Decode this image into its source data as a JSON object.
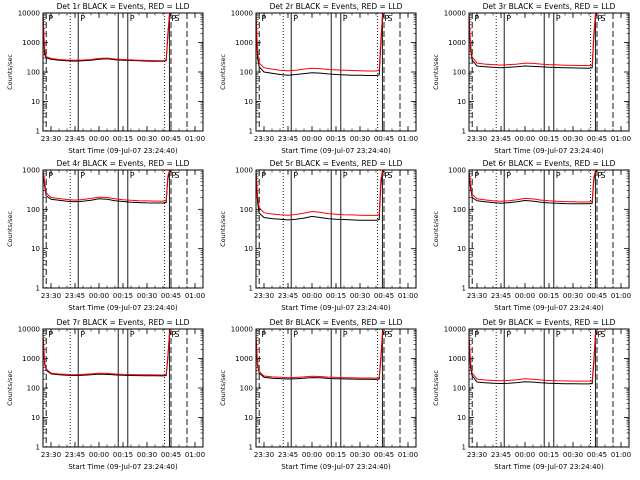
{
  "chart_data": [
    {
      "type": "line",
      "title": "Det 1r BLACK = Events, RED = LLD",
      "xlabel": "Start Time (09-Jul-07 23:24:40)",
      "ylabel": "Counts/sec",
      "ylog": true,
      "ylim": [
        1,
        10000
      ],
      "yticks": [
        "1",
        "10",
        "100",
        "1000",
        "10000"
      ],
      "xticks": [
        "23:30",
        "23:45",
        "00:00",
        "00:15",
        "00:30",
        "00:45",
        "01:00"
      ],
      "x": [
        "23:25",
        "23:26",
        "23:27",
        "23:30",
        "23:35",
        "23:40",
        "23:45",
        "23:50",
        "23:55",
        "00:00",
        "00:05",
        "00:10",
        "00:15",
        "00:20",
        "00:25",
        "00:30",
        "00:35",
        "00:40",
        "00:42",
        "00:43",
        "00:44",
        "00:45"
      ],
      "series": [
        {
          "name": "Events",
          "color": "#000000",
          "values": [
            8000,
            400,
            300,
            270,
            250,
            240,
            235,
            240,
            250,
            270,
            280,
            260,
            250,
            245,
            240,
            235,
            232,
            230,
            240,
            1500,
            8000,
            9000
          ]
        },
        {
          "name": "LLD",
          "color": "#ff0000",
          "values": [
            9000,
            600,
            330,
            290,
            265,
            255,
            250,
            255,
            265,
            290,
            295,
            275,
            265,
            258,
            252,
            247,
            244,
            242,
            255,
            2000,
            9000,
            9500
          ]
        }
      ],
      "vlines_solid": [
        "23:47",
        "00:12",
        "00:18",
        "00:44"
      ],
      "vlines_dotted": [
        "23:42",
        "00:41"
      ],
      "vlines_dashed": [
        "23:27",
        "00:45",
        "00:55"
      ],
      "markers": [
        "P",
        "P",
        "P",
        "P",
        "S"
      ]
    },
    {
      "type": "line",
      "title": "Det 2r BLACK = Events, RED = LLD",
      "xlabel": "Start Time (09-Jul-07 23:24:40)",
      "ylabel": "Counts/sec",
      "ylog": true,
      "ylim": [
        1,
        10000
      ],
      "yticks": [
        "1",
        "10",
        "100",
        "1000",
        "10000"
      ],
      "xticks": [
        "23:30",
        "23:45",
        "00:00",
        "00:15",
        "00:30",
        "00:45",
        "01:00"
      ],
      "x": [
        "23:25",
        "23:26",
        "23:27",
        "23:30",
        "23:35",
        "23:40",
        "23:45",
        "23:50",
        "23:55",
        "00:00",
        "00:05",
        "00:10",
        "00:15",
        "00:20",
        "00:25",
        "00:30",
        "00:35",
        "00:40",
        "00:42",
        "00:43",
        "00:44",
        "00:45"
      ],
      "series": [
        {
          "name": "Events",
          "color": "#000000",
          "values": [
            8000,
            300,
            150,
            100,
            90,
            82,
            78,
            82,
            88,
            95,
            92,
            86,
            82,
            80,
            78,
            77,
            76,
            76,
            80,
            800,
            7000,
            9000
          ]
        },
        {
          "name": "LLD",
          "color": "#ff0000",
          "values": [
            9000,
            500,
            200,
            140,
            125,
            115,
            110,
            115,
            125,
            135,
            130,
            122,
            118,
            115,
            112,
            110,
            108,
            108,
            115,
            1200,
            8000,
            9500
          ]
        }
      ],
      "vlines_solid": [
        "23:47",
        "00:12",
        "00:18",
        "00:44"
      ],
      "vlines_dotted": [
        "23:42",
        "00:41"
      ],
      "vlines_dashed": [
        "23:27",
        "00:45",
        "00:55"
      ],
      "markers": [
        "P",
        "P",
        "P",
        "P",
        "S"
      ]
    },
    {
      "type": "line",
      "title": "Det 3r BLACK = Events, RED = LLD",
      "xlabel": "Start Time (09-Jul-07 23:24:40)",
      "ylabel": "Counts/sec",
      "ylog": true,
      "ylim": [
        1,
        10000
      ],
      "yticks": [
        "1",
        "10",
        "100",
        "1000",
        "10000"
      ],
      "xticks": [
        "23:30",
        "23:45",
        "00:00",
        "00:15",
        "00:30",
        "00:45",
        "01:00"
      ],
      "x": [
        "23:25",
        "23:26",
        "23:27",
        "23:30",
        "23:35",
        "23:40",
        "23:45",
        "23:50",
        "23:55",
        "00:00",
        "00:05",
        "00:10",
        "00:15",
        "00:20",
        "00:25",
        "00:30",
        "00:35",
        "00:40",
        "00:42",
        "00:43",
        "00:44",
        "00:45"
      ],
      "series": [
        {
          "name": "Events",
          "color": "#000000",
          "values": [
            8000,
            600,
            250,
            160,
            150,
            145,
            140,
            145,
            150,
            160,
            155,
            150,
            145,
            142,
            140,
            138,
            136,
            135,
            140,
            1500,
            8000,
            9000
          ]
        },
        {
          "name": "LLD",
          "color": "#ff0000",
          "values": [
            9000,
            800,
            320,
            200,
            185,
            178,
            172,
            178,
            185,
            200,
            195,
            185,
            178,
            174,
            170,
            168,
            166,
            165,
            170,
            2000,
            9000,
            9500
          ]
        }
      ],
      "vlines_solid": [
        "23:47",
        "00:12",
        "00:18",
        "00:44"
      ],
      "vlines_dotted": [
        "23:42",
        "00:41"
      ],
      "vlines_dashed": [
        "23:27",
        "00:45",
        "00:55"
      ],
      "markers": [
        "P",
        "P",
        "P",
        "P",
        "S"
      ]
    },
    {
      "type": "line",
      "title": "Det 4r BLACK = Events, RED = LLD",
      "xlabel": "Start Time (09-Jul-07 23:24:40)",
      "ylabel": "Counts/sec",
      "ylog": true,
      "ylim": [
        1,
        1000
      ],
      "yticks": [
        "1",
        "10",
        "100",
        "1000"
      ],
      "xticks": [
        "23:30",
        "23:45",
        "00:00",
        "00:15",
        "00:30",
        "00:45",
        "01:00"
      ],
      "x": [
        "23:25",
        "23:26",
        "23:27",
        "23:30",
        "23:35",
        "23:40",
        "23:45",
        "23:50",
        "23:55",
        "00:00",
        "00:05",
        "00:10",
        "00:15",
        "00:20",
        "00:25",
        "00:30",
        "00:35",
        "00:40",
        "00:42",
        "00:43",
        "00:44",
        "00:45"
      ],
      "series": [
        {
          "name": "Events",
          "color": "#000000",
          "values": [
            900,
            400,
            220,
            180,
            170,
            160,
            155,
            160,
            170,
            185,
            180,
            165,
            158,
            152,
            148,
            146,
            145,
            145,
            150,
            600,
            900,
            950
          ]
        },
        {
          "name": "LLD",
          "color": "#ff0000",
          "values": [
            950,
            500,
            260,
            200,
            188,
            178,
            172,
            178,
            190,
            205,
            200,
            185,
            176,
            170,
            166,
            164,
            162,
            162,
            168,
            700,
            950,
            980
          ]
        }
      ],
      "vlines_solid": [
        "23:47",
        "00:12",
        "00:18",
        "00:44"
      ],
      "vlines_dotted": [
        "23:42",
        "00:41"
      ],
      "vlines_dashed": [
        "23:27",
        "00:45",
        "00:55"
      ],
      "markers": [
        "P",
        "P",
        "P",
        "P",
        "S"
      ]
    },
    {
      "type": "line",
      "title": "Det 5r BLACK = Events, RED = LLD",
      "xlabel": "Start Time (09-Jul-07 23:24:40)",
      "ylabel": "Counts/sec",
      "ylog": true,
      "ylim": [
        1,
        1000
      ],
      "yticks": [
        "1",
        "10",
        "100",
        "1000"
      ],
      "xticks": [
        "23:30",
        "23:45",
        "00:00",
        "00:15",
        "00:30",
        "00:45",
        "01:00"
      ],
      "x": [
        "23:25",
        "23:26",
        "23:27",
        "23:30",
        "23:35",
        "23:40",
        "23:45",
        "23:50",
        "23:55",
        "00:00",
        "00:05",
        "00:10",
        "00:15",
        "00:20",
        "00:25",
        "00:30",
        "00:35",
        "00:40",
        "00:42",
        "00:43",
        "00:44",
        "00:45"
      ],
      "series": [
        {
          "name": "Events",
          "color": "#000000",
          "values": [
            900,
            150,
            80,
            62,
            58,
            56,
            54,
            56,
            60,
            66,
            62,
            58,
            56,
            55,
            54,
            53,
            53,
            53,
            55,
            400,
            900,
            950
          ]
        },
        {
          "name": "LLD",
          "color": "#ff0000",
          "values": [
            950,
            220,
            110,
            82,
            76,
            73,
            71,
            74,
            80,
            88,
            84,
            78,
            75,
            73,
            72,
            71,
            70,
            70,
            73,
            550,
            950,
            980
          ]
        }
      ],
      "vlines_solid": [
        "23:47",
        "00:12",
        "00:18",
        "00:44"
      ],
      "vlines_dotted": [
        "23:42",
        "00:41"
      ],
      "vlines_dashed": [
        "23:27",
        "00:45",
        "00:55"
      ],
      "markers": [
        "P",
        "P",
        "P",
        "P",
        "S"
      ]
    },
    {
      "type": "line",
      "title": "Det 6r BLACK = Events, RED = LLD",
      "xlabel": "Start Time (09-Jul-07 23:24:40)",
      "ylabel": "Counts/sec",
      "ylog": true,
      "ylim": [
        1,
        1000
      ],
      "yticks": [
        "1",
        "10",
        "100",
        "1000"
      ],
      "xticks": [
        "23:30",
        "23:45",
        "00:00",
        "00:15",
        "00:30",
        "00:45",
        "01:00"
      ],
      "x": [
        "23:25",
        "23:26",
        "23:27",
        "23:30",
        "23:35",
        "23:40",
        "23:45",
        "23:50",
        "23:55",
        "00:00",
        "00:05",
        "00:10",
        "00:15",
        "00:20",
        "00:25",
        "00:30",
        "00:35",
        "00:40",
        "00:42",
        "00:43",
        "00:44",
        "00:45"
      ],
      "series": [
        {
          "name": "Events",
          "color": "#000000",
          "values": [
            900,
            350,
            200,
            165,
            155,
            148,
            142,
            148,
            156,
            168,
            162,
            152,
            146,
            142,
            140,
            139,
            138,
            138,
            142,
            550,
            900,
            950
          ]
        },
        {
          "name": "LLD",
          "color": "#ff0000",
          "values": [
            950,
            450,
            240,
            185,
            174,
            166,
            160,
            166,
            176,
            190,
            184,
            172,
            165,
            160,
            157,
            155,
            154,
            154,
            158,
            650,
            950,
            980
          ]
        }
      ],
      "vlines_solid": [
        "23:47",
        "00:12",
        "00:18",
        "00:44"
      ],
      "vlines_dotted": [
        "23:42",
        "00:41"
      ],
      "vlines_dashed": [
        "23:27",
        "00:45",
        "00:55"
      ],
      "markers": [
        "P",
        "P",
        "P",
        "P",
        "S"
      ]
    },
    {
      "type": "line",
      "title": "Det 7r BLACK = Events, RED = LLD",
      "xlabel": "Start Time (09-Jul-07 23:24:40)",
      "ylabel": "Counts/sec",
      "ylog": true,
      "ylim": [
        1,
        10000
      ],
      "yticks": [
        "1",
        "10",
        "100",
        "1000",
        "10000"
      ],
      "xticks": [
        "23:30",
        "23:45",
        "00:00",
        "00:15",
        "00:30",
        "00:45",
        "01:00"
      ],
      "x": [
        "23:25",
        "23:26",
        "23:27",
        "23:30",
        "23:35",
        "23:40",
        "23:45",
        "23:50",
        "23:55",
        "00:00",
        "00:05",
        "00:10",
        "00:15",
        "00:20",
        "00:25",
        "00:30",
        "00:35",
        "00:40",
        "00:42",
        "00:43",
        "00:44",
        "00:45"
      ],
      "series": [
        {
          "name": "Events",
          "color": "#000000",
          "values": [
            5000,
            700,
            400,
            300,
            280,
            270,
            265,
            270,
            280,
            295,
            290,
            278,
            270,
            266,
            264,
            262,
            260,
            258,
            265,
            1000,
            6000,
            8000
          ]
        },
        {
          "name": "LLD",
          "color": "#ff0000",
          "values": [
            6000,
            800,
            440,
            320,
            298,
            288,
            282,
            288,
            300,
            318,
            312,
            298,
            290,
            285,
            282,
            280,
            278,
            276,
            284,
            1200,
            7000,
            9000
          ]
        }
      ],
      "vlines_solid": [
        "23:47",
        "00:12",
        "00:18",
        "00:44"
      ],
      "vlines_dotted": [
        "23:42",
        "00:41"
      ],
      "vlines_dashed": [
        "23:27",
        "00:45",
        "00:55"
      ],
      "markers": [
        "P",
        "P",
        "P",
        "P",
        "S"
      ]
    },
    {
      "type": "line",
      "title": "Det 8r BLACK = Events, RED = LLD",
      "xlabel": "Start Time (09-Jul-07 23:24:40)",
      "ylabel": "Counts/sec",
      "ylog": true,
      "ylim": [
        1,
        10000
      ],
      "yticks": [
        "1",
        "10",
        "100",
        "1000",
        "10000"
      ],
      "xticks": [
        "23:30",
        "23:45",
        "00:00",
        "00:15",
        "00:30",
        "00:45",
        "01:00"
      ],
      "x": [
        "23:25",
        "23:26",
        "23:27",
        "23:30",
        "23:35",
        "23:40",
        "23:45",
        "23:50",
        "23:55",
        "00:00",
        "00:05",
        "00:10",
        "00:15",
        "00:20",
        "00:25",
        "00:30",
        "00:35",
        "00:40",
        "00:42",
        "00:43",
        "00:44",
        "00:45"
      ],
      "series": [
        {
          "name": "Events",
          "color": "#000000",
          "values": [
            5000,
            600,
            320,
            230,
            215,
            208,
            202,
            206,
            214,
            226,
            222,
            212,
            206,
            203,
            200,
            198,
            197,
            196,
            202,
            900,
            6000,
            8000
          ]
        },
        {
          "name": "LLD",
          "color": "#ff0000",
          "values": [
            6000,
            700,
            360,
            255,
            238,
            230,
            224,
            228,
            238,
            252,
            246,
            235,
            228,
            224,
            221,
            219,
            218,
            217,
            224,
            1100,
            7000,
            9000
          ]
        }
      ],
      "vlines_solid": [
        "23:47",
        "00:12",
        "00:18",
        "00:44"
      ],
      "vlines_dotted": [
        "23:42",
        "00:41"
      ],
      "vlines_dashed": [
        "23:27",
        "00:45",
        "00:55"
      ],
      "markers": [
        "P",
        "P",
        "P",
        "P",
        "S"
      ]
    },
    {
      "type": "line",
      "title": "Det 9r BLACK = Events, RED = LLD",
      "xlabel": "Start Time (09-Jul-07 23:24:40)",
      "ylabel": "Counts/sec",
      "ylog": true,
      "ylim": [
        1,
        10000
      ],
      "yticks": [
        "1",
        "10",
        "100",
        "1000",
        "10000"
      ],
      "xticks": [
        "23:30",
        "23:45",
        "00:00",
        "00:15",
        "00:30",
        "00:45",
        "01:00"
      ],
      "x": [
        "23:25",
        "23:26",
        "23:27",
        "23:30",
        "23:35",
        "23:40",
        "23:45",
        "23:50",
        "23:55",
        "00:00",
        "00:05",
        "00:10",
        "00:15",
        "00:20",
        "00:25",
        "00:30",
        "00:35",
        "00:40",
        "00:42",
        "00:43",
        "00:44",
        "00:45"
      ],
      "series": [
        {
          "name": "Events",
          "color": "#000000",
          "values": [
            5000,
            500,
            260,
            160,
            150,
            145,
            142,
            146,
            152,
            162,
            158,
            150,
            145,
            142,
            140,
            139,
            138,
            138,
            142,
            700,
            6000,
            8000
          ]
        },
        {
          "name": "LLD",
          "color": "#ff0000",
          "values": [
            6000,
            700,
            320,
            200,
            186,
            180,
            176,
            181,
            190,
            205,
            198,
            186,
            180,
            176,
            174,
            172,
            171,
            171,
            176,
            900,
            7000,
            9000
          ]
        }
      ],
      "vlines_solid": [
        "23:47",
        "00:12",
        "00:18",
        "00:44"
      ],
      "vlines_dotted": [
        "23:42",
        "00:41"
      ],
      "vlines_dashed": [
        "23:27",
        "00:45",
        "00:55"
      ],
      "markers": [
        "P",
        "P",
        "P",
        "P",
        "S"
      ]
    }
  ]
}
